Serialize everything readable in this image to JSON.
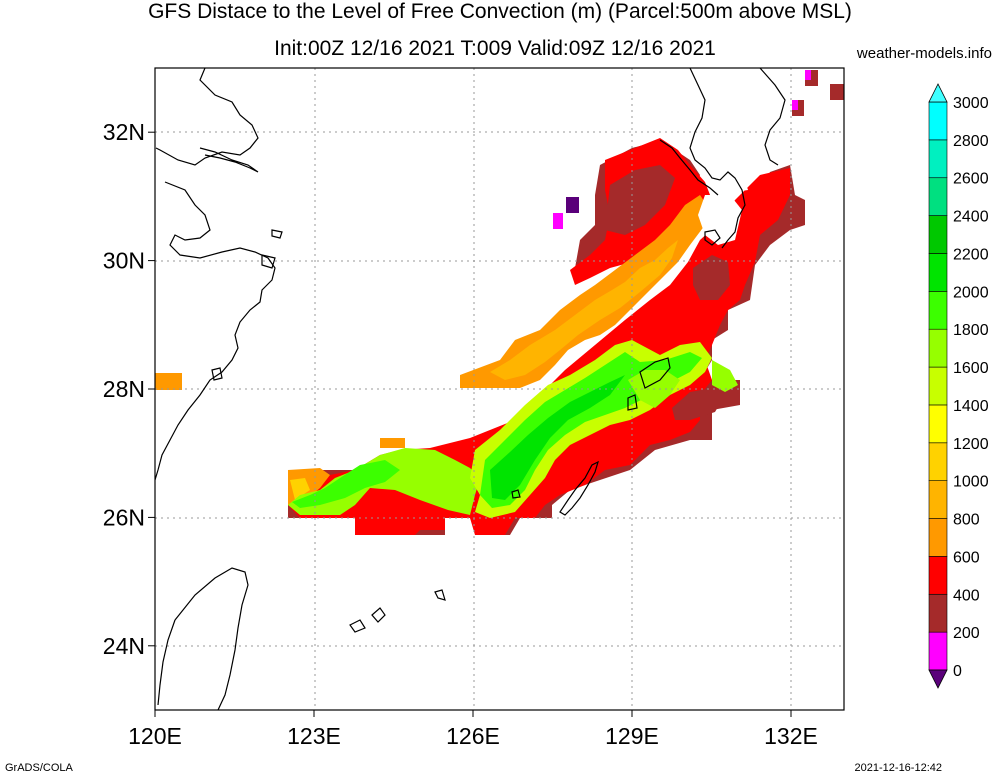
{
  "title_line1": "GFS Distace to the Level of Free Convection (m) (Parcel:500m above MSL)",
  "title_line2": "Init:00Z 12/16 2021 T:009 Valid:09Z 12/16 2021",
  "credit": "weather-models.info",
  "footer_left": "GrADS/COLA",
  "footer_right": "2021-12-16-12:42",
  "map": {
    "lon_range": [
      120,
      133
    ],
    "lat_range": [
      23,
      33
    ],
    "lon_ticks": [
      {
        "value": 120,
        "label": "120E"
      },
      {
        "value": 123,
        "label": "123E"
      },
      {
        "value": 126,
        "label": "126E"
      },
      {
        "value": 129,
        "label": "129E"
      },
      {
        "value": 132,
        "label": "132E"
      }
    ],
    "lat_ticks": [
      {
        "value": 24,
        "label": "24N"
      },
      {
        "value": 26,
        "label": "26N"
      },
      {
        "value": 28,
        "label": "28N"
      },
      {
        "value": 30,
        "label": "30N"
      },
      {
        "value": 32,
        "label": "32N"
      }
    ],
    "gridlines": true
  },
  "colorbar": {
    "levels": [
      0,
      200,
      400,
      600,
      800,
      1000,
      1200,
      1400,
      1600,
      1800,
      2000,
      2200,
      2400,
      2600,
      2800,
      3000
    ],
    "labels": [
      "0",
      "200",
      "400",
      "600",
      "800",
      "1000",
      "1200",
      "1400",
      "1600",
      "1800",
      "2000",
      "2200",
      "2400",
      "2600",
      "2800",
      "3000"
    ],
    "colors": [
      "#5a007a",
      "#ff00ff",
      "#a52a2a",
      "#ff0000",
      "#ff9900",
      "#ffb400",
      "#ffd200",
      "#ffff00",
      "#c8ff00",
      "#96ff00",
      "#3cff00",
      "#00e400",
      "#00c800",
      "#00e080",
      "#00f0c0",
      "#00ffff"
    ],
    "extend": "both"
  },
  "legend_colors": {
    "below": "#5a007a",
    "above": "#40ffff"
  }
}
